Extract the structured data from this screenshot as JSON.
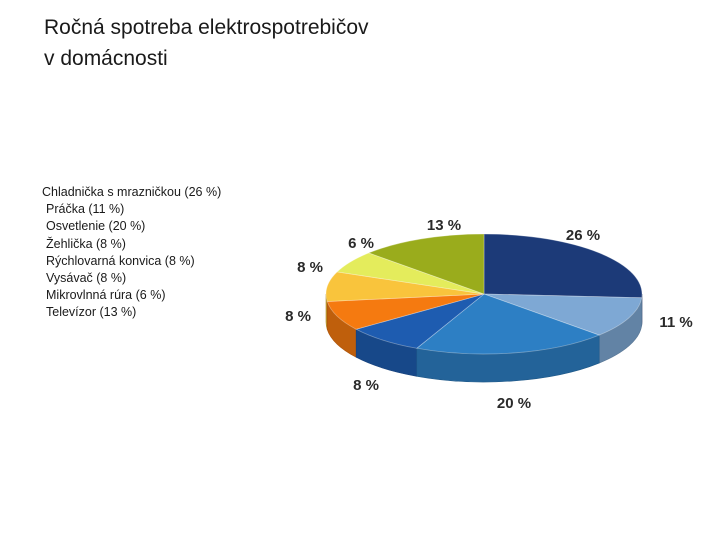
{
  "page_title_lines": [
    "Ročná spotreba elektrospotrebičov",
    "v domácnosti"
  ],
  "legend": [
    "Chladnička s mrazničkou (26 %)",
    "Práčka (11 %)",
    "Osvetlenie (20 %)",
    "Žehlička (8 %)",
    "Rýchlovarná konvica (8 %)",
    "Vysávač (8 %)",
    "Mikrovlnná rúra (6 %)",
    "Televízor (13 %)"
  ],
  "chart_data": {
    "type": "pie",
    "title": "Ročná spotreba elektrospotrebičov v domácnosti",
    "style": "3d",
    "legend_position": "left",
    "categories": [
      "Chladnička s mrazničkou",
      "Práčka",
      "Osvetlenie",
      "Žehlička",
      "Rýchlovarná konvica",
      "Vysávač",
      "Mikrovlnná rúra",
      "Televízor"
    ],
    "values": [
      26,
      11,
      20,
      8,
      8,
      8,
      6,
      13
    ],
    "unit": "%",
    "data_labels": [
      "26 %",
      "11 %",
      "20 %",
      "8 %",
      "8 %",
      "8 %",
      "6 %",
      "13 %"
    ],
    "colors": [
      "#1c3a78",
      "#7ea8d4",
      "#2d7fc4",
      "#1e5cb0",
      "#f57a10",
      "#f9c43c",
      "#e4ec5c",
      "#9aac1c"
    ]
  }
}
